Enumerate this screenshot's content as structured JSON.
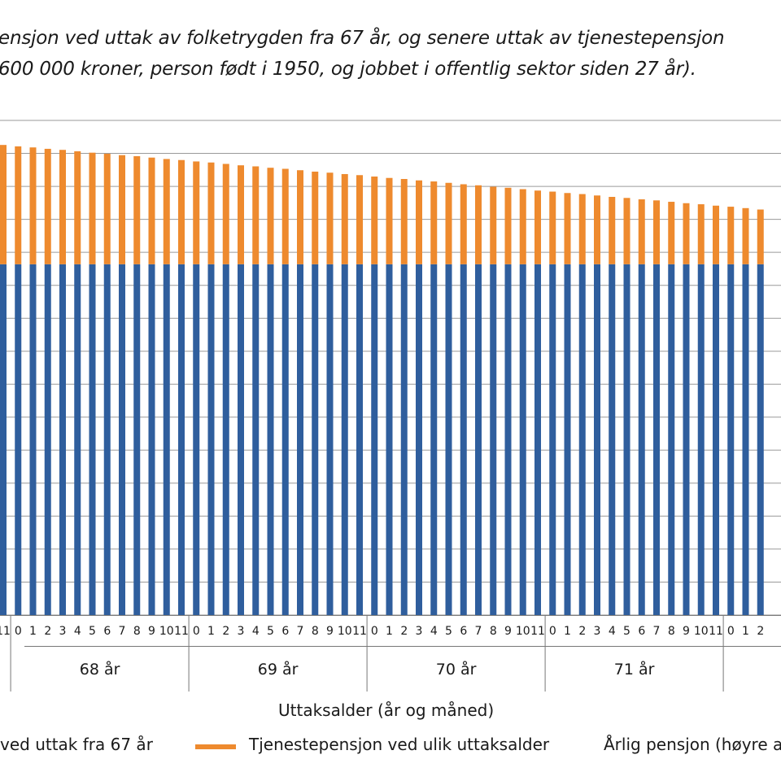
{
  "title_lines": [
    "ensjon ved uttak av folketrygden fra 67 år, og senere uttak av tjenestepensjon",
    "600 000 kroner, person født i 1950, og jobbet i offentlig sektor siden 27 år)."
  ],
  "legend": {
    "item1": "ved uttak fra 67 år",
    "item2": "Tjenestepensjon ved ulik uttaksalder",
    "item3": "Årlig pensjon (høyre a"
  },
  "colors": {
    "base": "#2f5e9d",
    "tp": "#ee8a2e",
    "grid": "#9a9a9a",
    "axis": "#777777"
  },
  "chart_data": {
    "type": "bar",
    "stacked": true,
    "xlabel": "Uttaksalder (år og måned)",
    "month_ticks": [
      "0",
      "1",
      "2",
      "3",
      "4",
      "5",
      "6",
      "7",
      "8",
      "9",
      "10",
      "11"
    ],
    "groups": [
      {
        "label": "",
        "months": [
          "11"
        ]
      },
      {
        "label": "68 år",
        "months": [
          "0",
          "1",
          "2",
          "3",
          "4",
          "5",
          "6",
          "7",
          "8",
          "9",
          "10",
          "11"
        ]
      },
      {
        "label": "69 år",
        "months": [
          "0",
          "1",
          "2",
          "3",
          "4",
          "5",
          "6",
          "7",
          "8",
          "9",
          "10",
          "11"
        ]
      },
      {
        "label": "70 år",
        "months": [
          "0",
          "1",
          "2",
          "3",
          "4",
          "5",
          "6",
          "7",
          "8",
          "9",
          "10",
          "11"
        ]
      },
      {
        "label": "71 år",
        "months": [
          "0",
          "1",
          "2",
          "3",
          "4",
          "5",
          "6",
          "7",
          "8",
          "9",
          "10",
          "11"
        ]
      },
      {
        "label": "",
        "months": [
          "0",
          "1",
          "2"
        ]
      }
    ],
    "series": [
      {
        "name": "ved uttak fra 67 år",
        "values": [
          100,
          100,
          100,
          100,
          100,
          100,
          100,
          100,
          100,
          100,
          100,
          100,
          100,
          100,
          100,
          100,
          100,
          100,
          100,
          100,
          100,
          100,
          100,
          100,
          100,
          100,
          100,
          100,
          100,
          100,
          100,
          100,
          100,
          100,
          100,
          100,
          100,
          100,
          100,
          100,
          100,
          100,
          100,
          100,
          100,
          100,
          100,
          100,
          100,
          100,
          100,
          100
        ]
      },
      {
        "name": "Tjenestepensjon ved ulik uttaksalder",
        "values": [
          34.0,
          33.6,
          33.3,
          32.9,
          32.6,
          32.2,
          31.8,
          31.5,
          31.1,
          30.8,
          30.4,
          30.0,
          29.7,
          29.3,
          29.0,
          28.6,
          28.2,
          27.9,
          27.5,
          27.2,
          26.8,
          26.4,
          26.1,
          25.7,
          25.4,
          25.0,
          24.6,
          24.3,
          23.9,
          23.6,
          23.2,
          22.8,
          22.5,
          22.1,
          21.8,
          21.4,
          21.0,
          20.7,
          20.3,
          20.0,
          19.6,
          19.2,
          18.9,
          18.5,
          18.2,
          17.8,
          17.4,
          17.1,
          16.7,
          16.4,
          16.0,
          15.6
        ]
      }
    ],
    "ylim": [
      0,
      141
    ],
    "grid": true,
    "legend_position": "bottom"
  }
}
